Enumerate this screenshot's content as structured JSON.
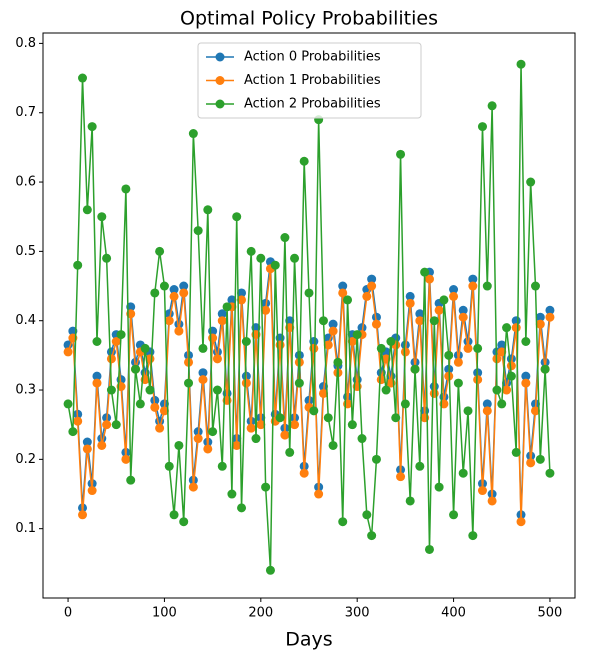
{
  "chart_data": {
    "type": "line",
    "title": "Optimal Policy Probabilities",
    "x_label": "Days",
    "x": [
      0,
      5,
      10,
      15,
      20,
      25,
      30,
      35,
      40,
      45,
      50,
      55,
      60,
      65,
      70,
      75,
      80,
      85,
      90,
      95,
      100,
      105,
      110,
      115,
      120,
      125,
      130,
      135,
      140,
      145,
      150,
      155,
      160,
      165,
      170,
      175,
      180,
      185,
      190,
      195,
      200,
      205,
      210,
      215,
      220,
      225,
      230,
      235,
      240,
      245,
      250,
      255,
      260,
      265,
      270,
      275,
      280,
      285,
      290,
      295,
      300,
      305,
      310,
      315,
      320,
      325,
      330,
      335,
      340,
      345,
      350,
      355,
      360,
      365,
      370,
      375,
      380,
      385,
      390,
      395,
      400,
      405,
      410,
      415,
      420,
      425,
      430,
      435,
      440,
      445,
      450,
      455,
      460,
      465,
      470,
      475,
      480,
      485,
      490,
      495,
      500
    ],
    "series": [
      {
        "name": "Action 0 Probabilities",
        "color": "#1f77b4",
        "values": [
          0.365,
          0.385,
          0.265,
          0.13,
          0.225,
          0.165,
          0.32,
          0.23,
          0.26,
          0.355,
          0.38,
          0.315,
          0.21,
          0.42,
          0.34,
          0.365,
          0.325,
          0.355,
          0.285,
          0.255,
          0.28,
          0.41,
          0.445,
          0.395,
          0.45,
          0.35,
          0.17,
          0.24,
          0.325,
          0.225,
          0.385,
          0.355,
          0.41,
          0.295,
          0.43,
          0.23,
          0.44,
          0.32,
          0.255,
          0.39,
          0.26,
          0.425,
          0.485,
          0.265,
          0.375,
          0.245,
          0.4,
          0.26,
          0.35,
          0.19,
          0.285,
          0.37,
          0.16,
          0.305,
          0.375,
          0.395,
          0.335,
          0.45,
          0.29,
          0.38,
          0.315,
          0.39,
          0.445,
          0.46,
          0.405,
          0.325,
          0.355,
          0.32,
          0.375,
          0.185,
          0.365,
          0.435,
          0.34,
          0.41,
          0.27,
          0.47,
          0.305,
          0.425,
          0.29,
          0.33,
          0.445,
          0.35,
          0.415,
          0.37,
          0.46,
          0.325,
          0.165,
          0.28,
          0.15,
          0.355,
          0.365,
          0.31,
          0.345,
          0.4,
          0.12,
          0.32,
          0.205,
          0.28,
          0.405,
          0.34,
          0.415
        ]
      },
      {
        "name": "Action 1 Probabilities",
        "color": "#ff7f0e",
        "values": [
          0.355,
          0.375,
          0.255,
          0.12,
          0.215,
          0.155,
          0.31,
          0.22,
          0.25,
          0.345,
          0.37,
          0.305,
          0.2,
          0.41,
          0.33,
          0.355,
          0.315,
          0.345,
          0.275,
          0.245,
          0.27,
          0.4,
          0.435,
          0.385,
          0.44,
          0.34,
          0.16,
          0.23,
          0.315,
          0.215,
          0.375,
          0.345,
          0.4,
          0.285,
          0.42,
          0.22,
          0.43,
          0.31,
          0.245,
          0.38,
          0.25,
          0.415,
          0.475,
          0.255,
          0.365,
          0.235,
          0.39,
          0.25,
          0.34,
          0.18,
          0.275,
          0.36,
          0.15,
          0.295,
          0.365,
          0.385,
          0.325,
          0.44,
          0.28,
          0.37,
          0.305,
          0.38,
          0.435,
          0.45,
          0.395,
          0.315,
          0.345,
          0.31,
          0.365,
          0.175,
          0.355,
          0.425,
          0.33,
          0.4,
          0.26,
          0.46,
          0.295,
          0.415,
          0.28,
          0.32,
          0.435,
          0.34,
          0.405,
          0.36,
          0.45,
          0.315,
          0.155,
          0.27,
          0.14,
          0.345,
          0.355,
          0.3,
          0.335,
          0.39,
          0.11,
          0.31,
          0.195,
          0.27,
          0.395,
          0.33,
          0.405
        ]
      },
      {
        "name": "Action 2 Probabilities",
        "color": "#2ca02c",
        "values": [
          0.28,
          0.24,
          0.48,
          0.75,
          0.56,
          0.68,
          0.37,
          0.55,
          0.49,
          0.3,
          0.25,
          0.38,
          0.59,
          0.17,
          0.33,
          0.28,
          0.36,
          0.3,
          0.44,
          0.5,
          0.45,
          0.19,
          0.12,
          0.22,
          0.11,
          0.31,
          0.67,
          0.53,
          0.36,
          0.56,
          0.24,
          0.3,
          0.19,
          0.42,
          0.15,
          0.55,
          0.13,
          0.37,
          0.5,
          0.23,
          0.49,
          0.16,
          0.04,
          0.48,
          0.26,
          0.52,
          0.21,
          0.49,
          0.31,
          0.63,
          0.44,
          0.27,
          0.69,
          0.4,
          0.26,
          0.22,
          0.34,
          0.11,
          0.43,
          0.25,
          0.38,
          0.23,
          0.12,
          0.09,
          0.2,
          0.36,
          0.3,
          0.37,
          0.26,
          0.64,
          0.28,
          0.14,
          0.33,
          0.19,
          0.47,
          0.07,
          0.4,
          0.16,
          0.43,
          0.35,
          0.12,
          0.31,
          0.18,
          0.27,
          0.09,
          0.36,
          0.68,
          0.45,
          0.71,
          0.3,
          0.28,
          0.39,
          0.32,
          0.21,
          0.77,
          0.37,
          0.6,
          0.45,
          0.2,
          0.33,
          0.18
        ]
      }
    ],
    "xlim": [
      -26,
      526
    ],
    "ylim": [
      0.0,
      0.815
    ],
    "xticks": [
      0,
      100,
      200,
      300,
      400,
      500
    ],
    "yticks": [
      0.1,
      0.2,
      0.3,
      0.4,
      0.5,
      0.6,
      0.7,
      0.8
    ],
    "legend": "upper center",
    "markers": true
  }
}
